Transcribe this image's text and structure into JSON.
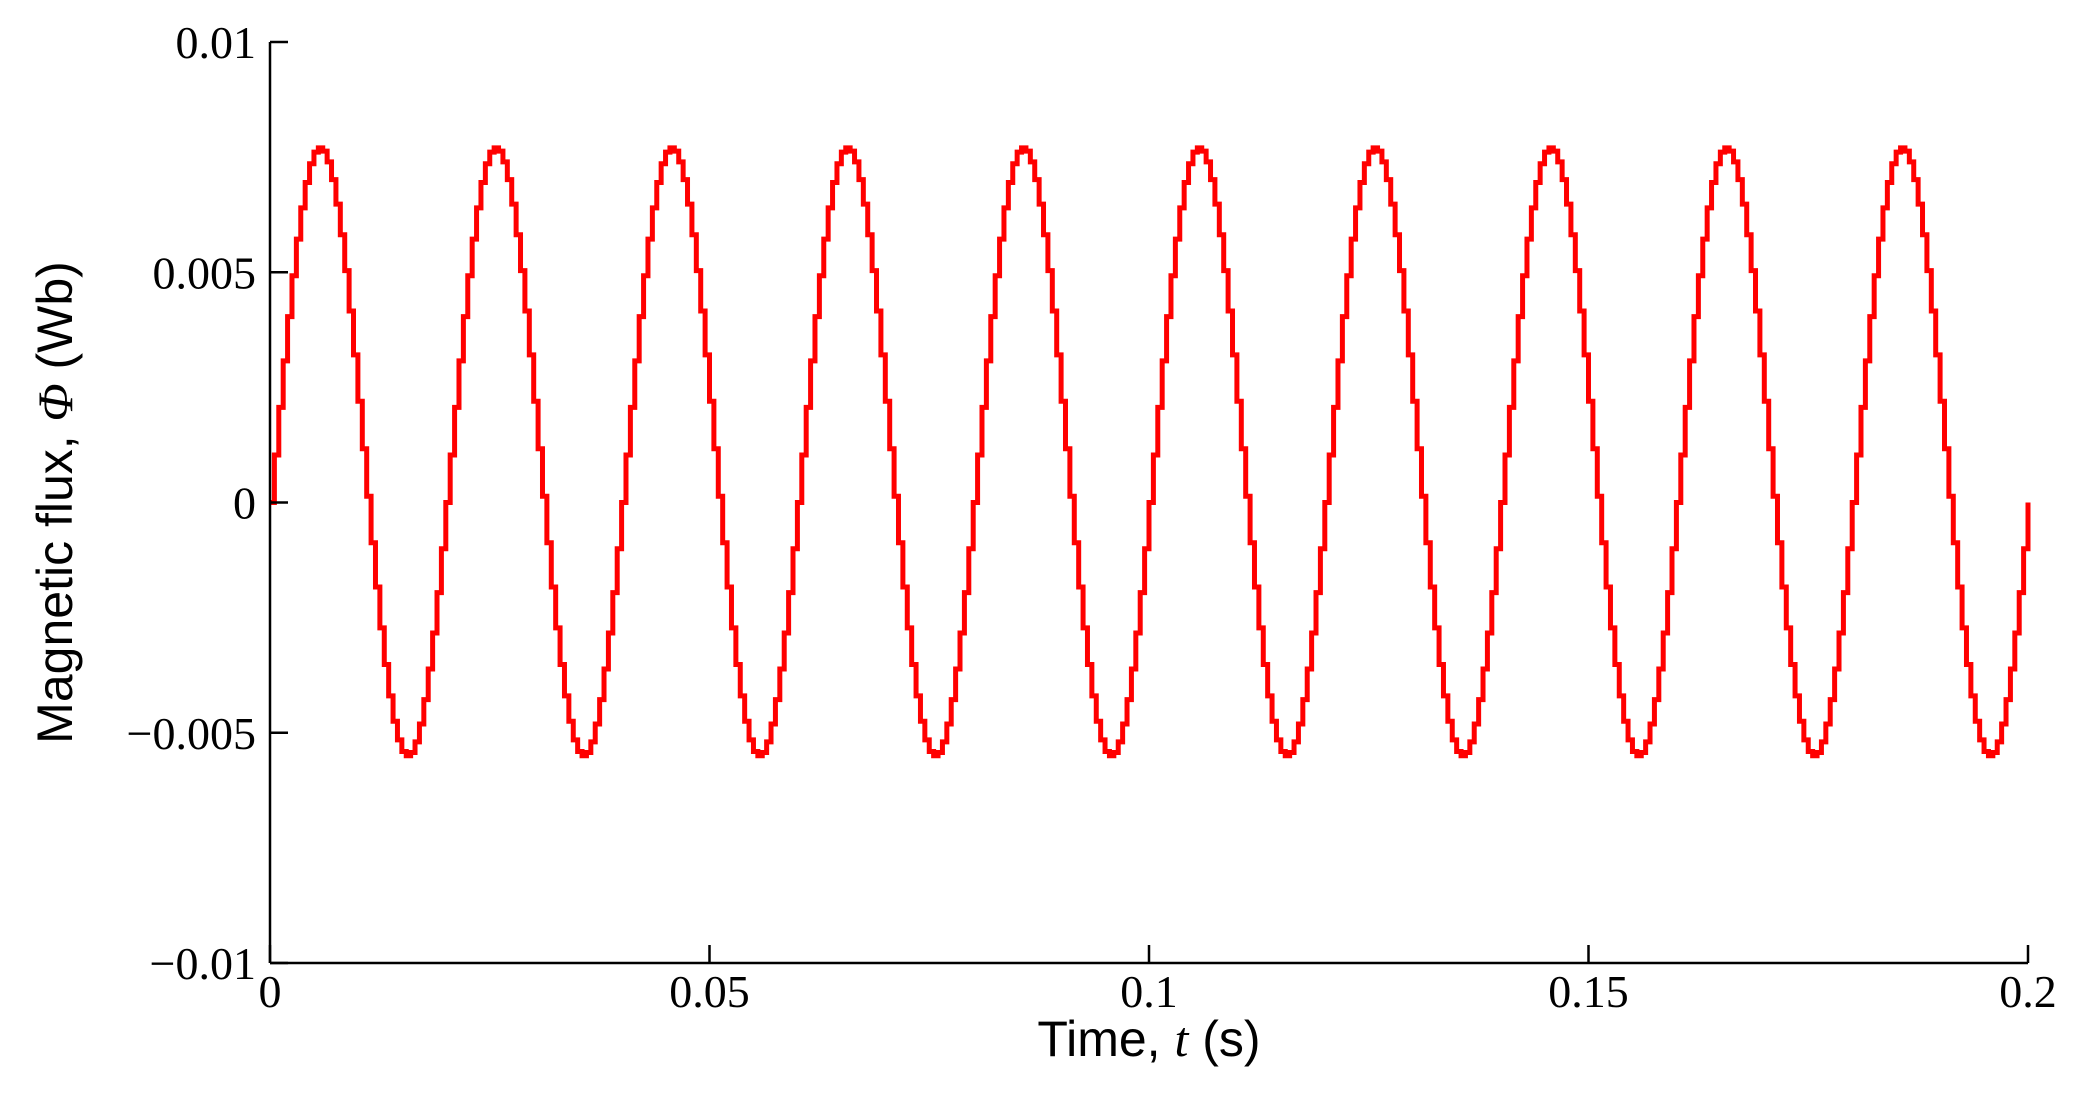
{
  "chart_data": {
    "type": "line",
    "xlabel": {
      "prefix": "Time, ",
      "symbol": "t",
      "suffix": " (s)"
    },
    "ylabel": {
      "prefix": "Magnetic flux, ",
      "symbol": "Φ",
      "suffix": " (Wb)"
    },
    "xlim": [
      0,
      0.2
    ],
    "ylim": [
      -0.01,
      0.01
    ],
    "x_ticks": [
      0,
      0.05,
      0.1,
      0.15,
      0.2
    ],
    "x_tick_labels": [
      "0",
      "0.05",
      "0.1",
      "0.15",
      "0.2"
    ],
    "y_ticks": [
      -0.01,
      -0.005,
      0,
      0.005,
      0.01
    ],
    "y_tick_labels": [
      "−0.01",
      "−0.005",
      "0",
      "0.005",
      "0.01"
    ],
    "grid": false,
    "legend": "none",
    "series": [
      {
        "color": "#ff0000",
        "offset": 0.0011,
        "amplitude": 0.0066,
        "frequency": 50,
        "step": 0.0005,
        "x_range": [
          0,
          0.2
        ]
      }
    ]
  }
}
